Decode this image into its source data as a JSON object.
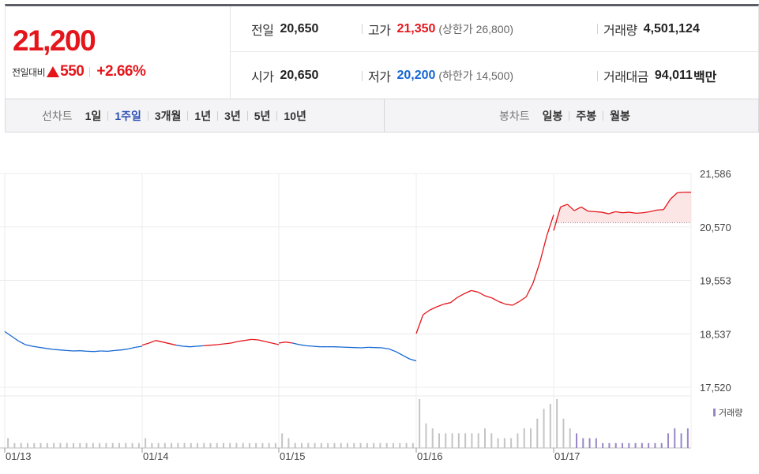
{
  "summary": {
    "price": "21,200",
    "diff_label": "전일대비",
    "diff_icon": "up-triangle-icon",
    "diff_value": "550",
    "diff_pct": "+2.66%",
    "prev_close_label": "전일",
    "prev_close": "20,650",
    "high_label": "고가",
    "high": "21,350",
    "upper_limit": "(상한가 26,800)",
    "volume_label": "거래량",
    "volume": "4,501,124",
    "open_label": "시가",
    "open": "20,650",
    "low_label": "저가",
    "low": "20,200",
    "lower_limit": "(하한가 14,500)",
    "amount_label": "거래대금",
    "amount": "94,011",
    "amount_unit": "백만"
  },
  "tabs": {
    "line_title": "선차트",
    "line_tabs": [
      "1일",
      "1주일",
      "3개월",
      "1년",
      "3년",
      "5년",
      "10년"
    ],
    "active": "1주일",
    "candle_title": "봉차트",
    "candle_tabs": [
      "일봉",
      "주봉",
      "월봉"
    ]
  },
  "colors": {
    "up": "#e4161b",
    "down": "#1467d2",
    "accent": "#2d4fb5",
    "volume_new": "#9a86c6",
    "volume_old": "#c4c4c4"
  },
  "chart_data": {
    "type": "line",
    "title": "",
    "x_tick_labels": [
      "01/13",
      "01/14",
      "01/15",
      "01/16",
      "01/17"
    ],
    "y_tick_labels": [
      "21,586",
      "20,570",
      "19,553",
      "18,537",
      "17,520"
    ],
    "ylim": [
      17520,
      21586
    ],
    "reference_line": 20650,
    "grid": true,
    "series": [
      {
        "day": "01/13",
        "values": [
          18580,
          18490,
          18400,
          18330,
          18300,
          18280,
          18260,
          18240,
          18230,
          18220,
          18210,
          18215,
          18205,
          18200,
          18210,
          18205,
          18220,
          18230,
          18250,
          18280,
          18300
        ]
      },
      {
        "day": "01/14",
        "values": [
          18320,
          18360,
          18410,
          18380,
          18350,
          18320,
          18300,
          18290,
          18300,
          18310,
          18320,
          18330,
          18345,
          18360,
          18390,
          18410,
          18430,
          18420,
          18390,
          18360,
          18330
        ]
      },
      {
        "day": "01/15",
        "values": [
          18360,
          18380,
          18360,
          18330,
          18310,
          18300,
          18290,
          18290,
          18290,
          18285,
          18280,
          18275,
          18270,
          18280,
          18275,
          18270,
          18250,
          18200,
          18130,
          18060,
          18020
        ]
      },
      {
        "day": "01/16",
        "values": [
          18540,
          18900,
          18990,
          19050,
          19100,
          19130,
          19230,
          19300,
          19360,
          19330,
          19260,
          19220,
          19150,
          19100,
          19080,
          19150,
          19240,
          19500,
          19900,
          20400,
          20800
        ]
      },
      {
        "day": "01/17",
        "values": [
          20500,
          20950,
          21000,
          20880,
          20950,
          20870,
          20860,
          20850,
          20820,
          20860,
          20840,
          20850,
          20830,
          20840,
          20860,
          20890,
          20900,
          21100,
          21220,
          21230,
          21230
        ]
      }
    ],
    "volume_legend": "거래량",
    "volume": [
      [
        2,
        1,
        1,
        1,
        1,
        1,
        1,
        1,
        1,
        1,
        1,
        1,
        1,
        1,
        1,
        1,
        1,
        1,
        1,
        1,
        1
      ],
      [
        2,
        1,
        1,
        1,
        1,
        1,
        1,
        1,
        1,
        1,
        1,
        1,
        1,
        1,
        1,
        1,
        1,
        1,
        1,
        1,
        1
      ],
      [
        3,
        2,
        1,
        1,
        1,
        1,
        1,
        1,
        1,
        1,
        1,
        1,
        1,
        1,
        1,
        1,
        1,
        1,
        1,
        1,
        1
      ],
      [
        10,
        5,
        4,
        3,
        3,
        3,
        3,
        3,
        3,
        3,
        4,
        3,
        2,
        2,
        2,
        3,
        4,
        4,
        6,
        8,
        9
      ],
      [
        10,
        6,
        4,
        3,
        2,
        2,
        2,
        1,
        1,
        1,
        1,
        1,
        1,
        1,
        1,
        1,
        1,
        3,
        4,
        3,
        4
      ]
    ]
  }
}
